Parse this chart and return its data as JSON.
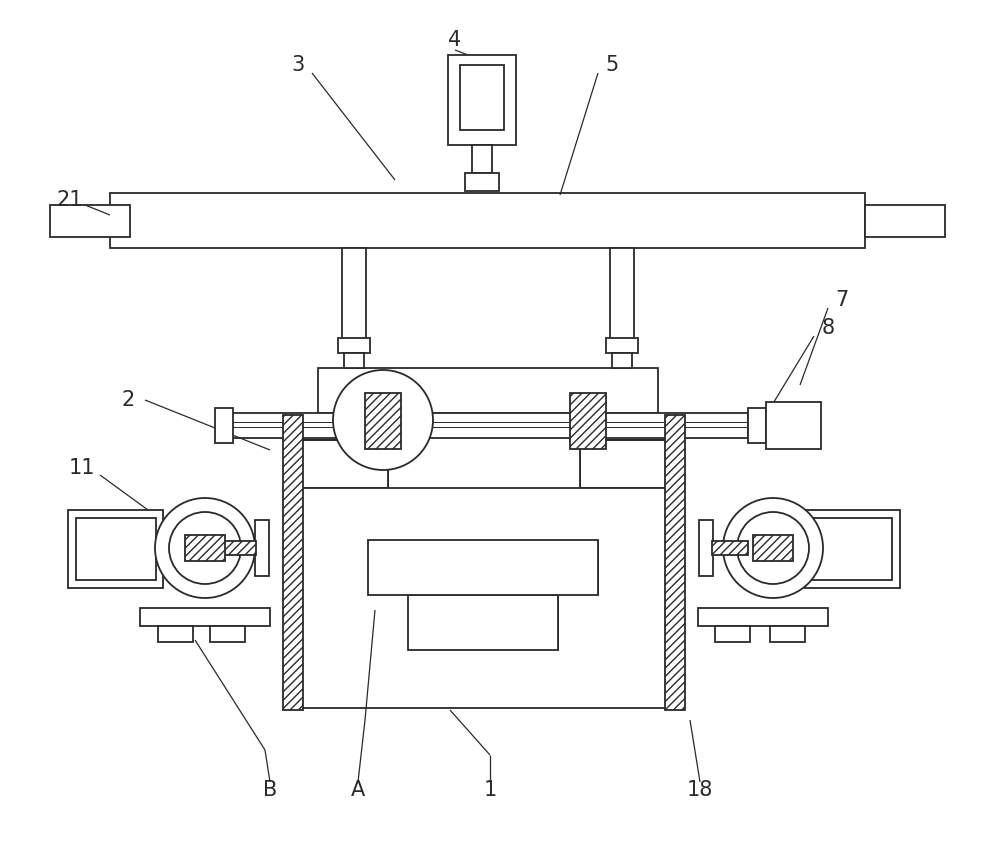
{
  "bg_color": "#ffffff",
  "lc": "#2a2a2a",
  "lw": 1.3,
  "lw_thin": 0.7,
  "font_size": 15
}
